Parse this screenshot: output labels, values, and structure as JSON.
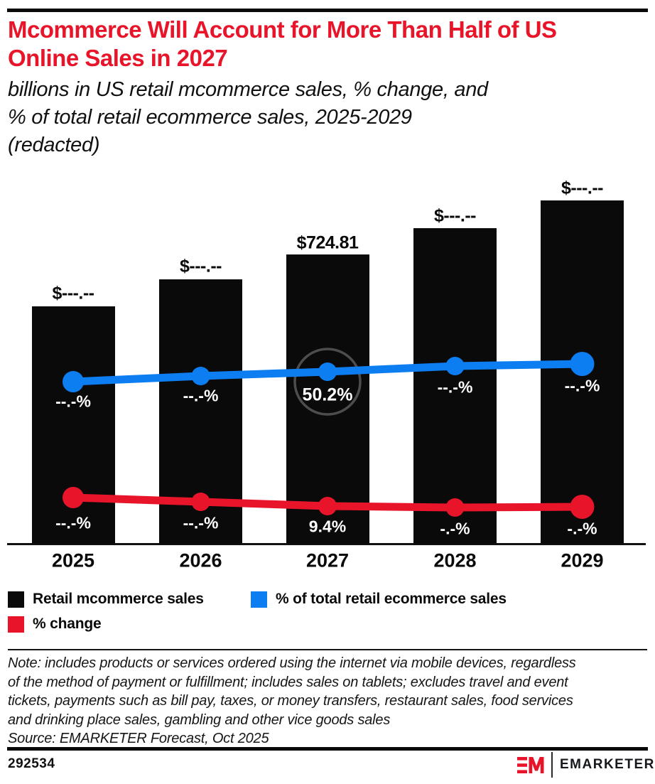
{
  "colors": {
    "brand_red": "#e8152a",
    "line_blue": "#0d7ef2",
    "bar_black": "#0a0a0a",
    "circle_gray": "#4d4d4d",
    "text_black": "#111111"
  },
  "header": {
    "title": "Mcommerce Will Account for More Than Half of US\nOnline Sales in 2027",
    "subtitle": "billions in US retail mcommerce sales, % change, and\n% of total retail ecommerce sales, 2025-2029\n(redacted)"
  },
  "chart_data": {
    "type": "combo_bar_line",
    "categories": [
      "2025",
      "2026",
      "2027",
      "2028",
      "2029"
    ],
    "series": [
      {
        "name": "Retail mcommerce sales",
        "type": "bar",
        "unit": "US$ billions",
        "color": "#0a0a0a",
        "values": [
          null,
          null,
          724.81,
          null,
          null
        ],
        "labels": [
          "$---.--",
          "$---.--",
          "$724.81",
          "$---.--",
          "$---.--"
        ]
      },
      {
        "name": "% of total retail ecommerce sales",
        "type": "line",
        "unit": "%",
        "color": "#0d7ef2",
        "values": [
          null,
          null,
          50.2,
          null,
          null
        ],
        "labels": [
          "--.-%",
          "--.-%",
          "50.2%",
          "--.-%",
          "--.-%"
        ]
      },
      {
        "name": "% change",
        "type": "line",
        "unit": "%",
        "color": "#e8152a",
        "values": [
          null,
          null,
          9.4,
          null,
          null
        ],
        "labels": [
          "--.-%",
          "--.-%",
          "9.4%",
          "-.-%",
          "-.-%"
        ]
      }
    ],
    "annotations": [
      {
        "type": "circle_highlight",
        "category": "2027",
        "series": "% of total retail ecommerce sales",
        "label": "50.2%"
      }
    ],
    "redaction": "dashed labels are redacted values",
    "legend_position": "bottom-left",
    "grid": false
  },
  "note": {
    "text": "Note: includes products or services ordered using the internet via mobile devices, regardless\nof the method of payment or fulfillment; includes sales on tablets; excludes travel and event\ntickets, payments such as bill pay, taxes, or money transfers, restaurant sales, food services\nand drinking place sales, gambling and other vice goods sales",
    "source": "Source: EMARKETER Forecast, Oct 2025"
  },
  "footer": {
    "chart_id": "292534",
    "brand": "EMARKETER"
  }
}
